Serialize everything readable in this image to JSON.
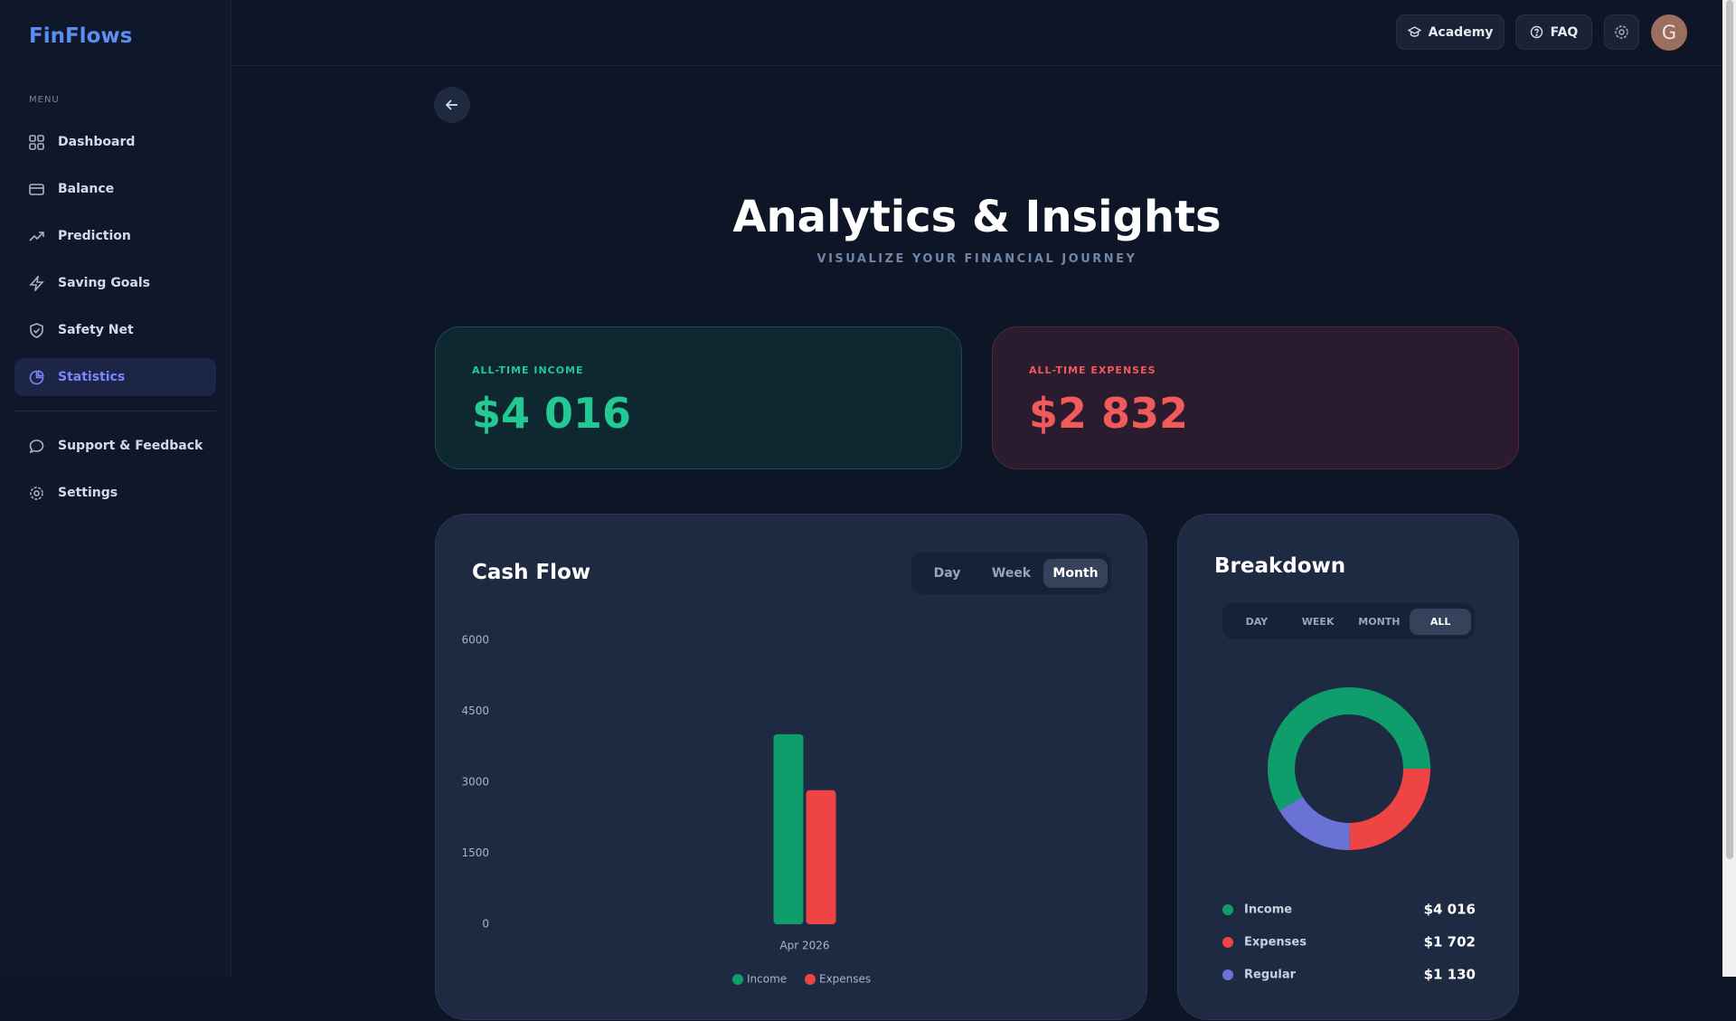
{
  "sidebar": {
    "logo": "FinFlows",
    "menu_label": "MENU",
    "items": [
      "Dashboard",
      "Balance",
      "Prediction",
      "Saving Goals",
      "Safety Net",
      "Statistics"
    ],
    "footer_items": [
      "Support & Feedback",
      "Settings"
    ]
  },
  "topbar": {
    "buttons": [
      "Academy",
      "FAQ"
    ],
    "avatar": "G"
  },
  "header": {
    "title": "Analytics & Insights",
    "subtitle": "VISUALIZE YOUR FINANCIAL JOURNEY"
  },
  "kpis": [
    {
      "label": "ALL-TIME INCOME",
      "value": "$4 016"
    },
    {
      "label": "ALL-TIME EXPENSES",
      "value": "$2 832"
    }
  ],
  "chart_data": [
    {
      "type": "bar",
      "title": "Cash Flow",
      "periods": [
        "Day",
        "Week",
        "Month"
      ],
      "categories": [
        "Apr 2026"
      ],
      "series": [
        {
          "name": "Income",
          "color": "#0f9d6b",
          "values": [
            4016
          ]
        },
        {
          "name": "Expenses",
          "color": "#ef4444",
          "values": [
            2832
          ]
        }
      ],
      "ylim": [
        0,
        6000
      ],
      "yticks": [
        0,
        1500,
        3000,
        4500,
        6000
      ]
    },
    {
      "type": "pie",
      "title": "Breakdown",
      "periods": [
        "DAY",
        "WEEK",
        "MONTH",
        "ALL"
      ],
      "categories": [
        "Income",
        "Expenses",
        "Regular"
      ],
      "values": [
        4016,
        1702,
        1130
      ],
      "value_labels": [
        "$4 016",
        "$1 702",
        "$1 130"
      ],
      "colors": [
        "#0f9d6b",
        "#ef4444",
        "#6b72d6"
      ]
    }
  ]
}
